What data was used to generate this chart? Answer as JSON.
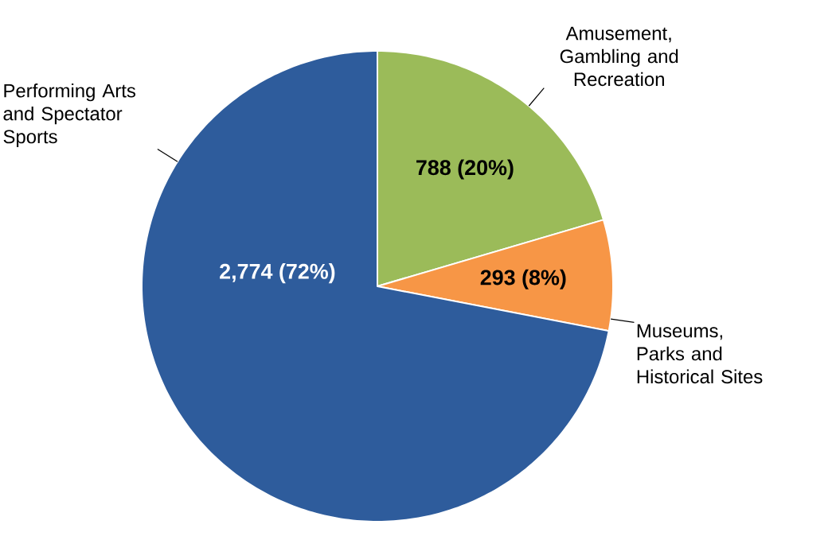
{
  "chart_data": {
    "type": "pie",
    "categories": [
      "Amusement, Gambling and Recreation",
      "Museums, Parks and Historical Sites",
      "Performing Arts and Spectator Sports"
    ],
    "values": [
      788,
      293,
      2774
    ],
    "colors": [
      "#9bbb59",
      "#f79646",
      "#2e5c9c"
    ],
    "value_labels": [
      "788 (20%)",
      "293 (8%)",
      "2,774 (72%)"
    ]
  }
}
